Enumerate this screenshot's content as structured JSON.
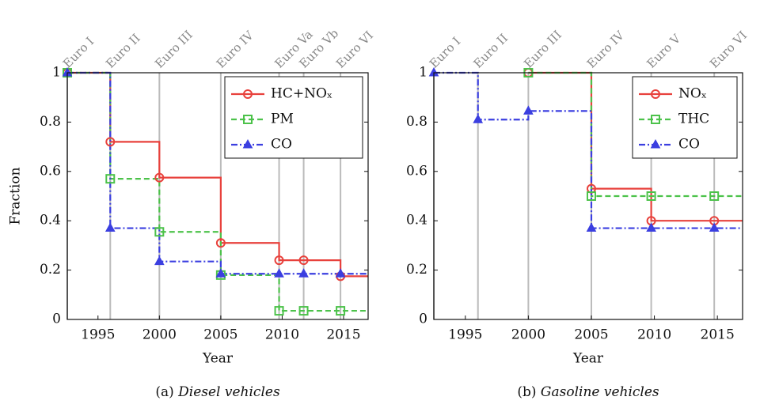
{
  "chart_data": [
    {
      "type": "line",
      "step": "post",
      "caption_label": "(a)",
      "caption": "Diesel vehicles",
      "xlabel": "Year",
      "ylabel": "Fraction",
      "xlim": [
        1992.5,
        2017
      ],
      "xticks": [
        1995,
        2000,
        2005,
        2010,
        2015
      ],
      "ylim": [
        0,
        1
      ],
      "yticks": [
        0,
        0.2,
        0.4,
        0.6,
        0.8,
        1
      ],
      "legend": "upper right",
      "milestones": {
        "x": [
          1992.5,
          1996,
          2000,
          2005,
          2009.75,
          2011.75,
          2014.75
        ],
        "labels": [
          "Euro I",
          "Euro II",
          "Euro III",
          "Euro IV",
          "Euro Va",
          "Euro Vb",
          "Euro VI"
        ]
      },
      "series": [
        {
          "name": "HC+NOₓ",
          "color": "#e8413c",
          "marker": "circle",
          "dash": "solid",
          "x": [
            1992.5,
            1996,
            2000,
            2005,
            2009.75,
            2011.75,
            2014.75
          ],
          "values": [
            1,
            0.72,
            0.575,
            0.31,
            0.24,
            0.24,
            0.175
          ]
        },
        {
          "name": "PM",
          "color": "#4cc24a",
          "marker": "square",
          "dash": "dashed",
          "x": [
            1992.5,
            1996,
            2000,
            2005,
            2009.75,
            2011.75,
            2014.75
          ],
          "values": [
            1,
            0.57,
            0.355,
            0.18,
            0.035,
            0.035,
            0.035
          ]
        },
        {
          "name": "CO",
          "color": "#3b3fe0",
          "marker": "triangle",
          "dashdot": true,
          "dash": "dashdot",
          "x": [
            1992.5,
            1996,
            2000,
            2005,
            2009.75,
            2011.75,
            2014.75
          ],
          "values": [
            1,
            0.37,
            0.235,
            0.185,
            0.185,
            0.185,
            0.185
          ]
        }
      ]
    },
    {
      "type": "line",
      "step": "post",
      "caption_label": "(b)",
      "caption": "Gasoline vehicles",
      "xlabel": "Year",
      "xlim": [
        1992.5,
        2017
      ],
      "xticks": [
        1995,
        2000,
        2005,
        2010,
        2015
      ],
      "ylim": [
        0,
        1
      ],
      "yticks": [
        0,
        0.2,
        0.4,
        0.6,
        0.8,
        1
      ],
      "legend": "upper right",
      "milestones": {
        "x": [
          1992.5,
          1996,
          2000,
          2005,
          2009.75,
          2014.75
        ],
        "labels": [
          "Euro I",
          "Euro II",
          "Euro III",
          "Euro IV",
          "Euro V",
          "Euro VI"
        ]
      },
      "series": [
        {
          "name": "NOₓ",
          "color": "#e8413c",
          "marker": "circle",
          "dash": "solid",
          "x": [
            2000,
            2005,
            2009.75,
            2014.75
          ],
          "values": [
            1,
            0.53,
            0.4,
            0.4
          ]
        },
        {
          "name": "THC",
          "color": "#4cc24a",
          "marker": "square",
          "dash": "dashed",
          "x": [
            2000,
            2005,
            2009.75,
            2014.75
          ],
          "values": [
            1,
            0.5,
            0.5,
            0.5
          ]
        },
        {
          "name": "CO",
          "color": "#3b3fe0",
          "marker": "triangle",
          "dash": "dashdot",
          "x": [
            1992.5,
            1996,
            2000,
            2005,
            2009.75,
            2014.75
          ],
          "values": [
            1,
            0.81,
            0.845,
            0.37,
            0.37,
            0.37
          ]
        }
      ]
    }
  ]
}
